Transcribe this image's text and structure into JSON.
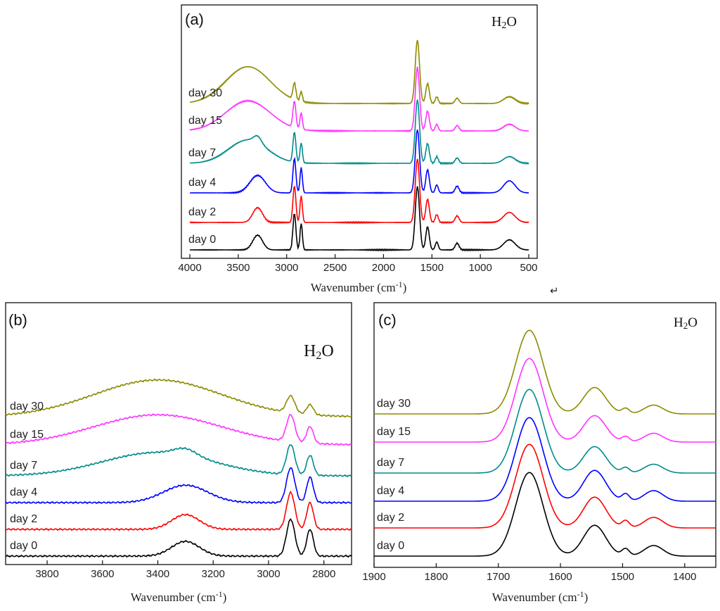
{
  "chart_data": [
    {
      "type": "line",
      "panel_label": "(a)",
      "solvent_label": "H2O",
      "xlabel": "Wavenumber (cm-1)",
      "xlim": [
        4000,
        500
      ],
      "xticks": [
        4000,
        3500,
        3000,
        2500,
        2000,
        1500,
        1000,
        500
      ],
      "series": [
        {
          "name": "day 0",
          "color": "#000000",
          "peaks": [
            [
              3300,
              22,
              50
            ],
            [
              2920,
              55,
              15
            ],
            [
              2850,
              40,
              12
            ],
            [
              1650,
              95,
              22
            ],
            [
              1545,
              35,
              18
            ],
            [
              1450,
              12,
              15
            ],
            [
              1240,
              10,
              20
            ],
            [
              700,
              15,
              60
            ]
          ]
        },
        {
          "name": "day 2",
          "color": "#ff0000",
          "peaks": [
            [
              3300,
              22,
              50
            ],
            [
              2920,
              55,
              15
            ],
            [
              2850,
              40,
              12
            ],
            [
              1650,
              95,
              22
            ],
            [
              1545,
              35,
              18
            ],
            [
              1450,
              12,
              15
            ],
            [
              1240,
              10,
              20
            ],
            [
              700,
              15,
              60
            ]
          ]
        },
        {
          "name": "day 4",
          "color": "#0000ff",
          "peaks": [
            [
              3300,
              26,
              80
            ],
            [
              2920,
              52,
              15
            ],
            [
              2850,
              38,
              12
            ],
            [
              1650,
              95,
              22
            ],
            [
              1545,
              35,
              18
            ],
            [
              1450,
              12,
              15
            ],
            [
              1240,
              10,
              20
            ],
            [
              700,
              18,
              60
            ]
          ]
        },
        {
          "name": "day 7",
          "color": "#008b8b",
          "peaks": [
            [
              3400,
              35,
              200
            ],
            [
              3300,
              10,
              40
            ],
            [
              2920,
              45,
              15
            ],
            [
              2850,
              30,
              12
            ],
            [
              1650,
              95,
              22
            ],
            [
              1545,
              30,
              18
            ],
            [
              1450,
              10,
              15
            ],
            [
              1240,
              8,
              20
            ],
            [
              700,
              10,
              60
            ]
          ]
        },
        {
          "name": "day 15",
          "color": "#ff33ff",
          "peaks": [
            [
              3400,
              45,
              230
            ],
            [
              2920,
              40,
              15
            ],
            [
              2850,
              25,
              12
            ],
            [
              1650,
              95,
              22
            ],
            [
              1545,
              30,
              18
            ],
            [
              1450,
              10,
              15
            ],
            [
              1240,
              8,
              20
            ],
            [
              700,
              10,
              60
            ]
          ]
        },
        {
          "name": "day 30",
          "color": "#8b8b00",
          "peaks": [
            [
              3400,
              55,
              230
            ],
            [
              2920,
              25,
              15
            ],
            [
              2850,
              15,
              12
            ],
            [
              1650,
              95,
              22
            ],
            [
              1545,
              30,
              18
            ],
            [
              1450,
              10,
              15
            ],
            [
              1240,
              8,
              20
            ],
            [
              700,
              10,
              60
            ]
          ]
        }
      ]
    },
    {
      "type": "line",
      "panel_label": "(b)",
      "solvent_label": "H2O",
      "xlabel": "Wavenumber (cm-1)",
      "xlim": [
        3950,
        2700
      ],
      "xticks": [
        3800,
        3600,
        3400,
        3200,
        3000,
        2800
      ],
      "series": [
        {
          "name": "day 0",
          "color": "#000000",
          "peaks": [
            [
              3300,
              22,
              50
            ],
            [
              2920,
              55,
              15
            ],
            [
              2850,
              40,
              12
            ]
          ]
        },
        {
          "name": "day 2",
          "color": "#ff0000",
          "peaks": [
            [
              3300,
              22,
              50
            ],
            [
              2920,
              55,
              15
            ],
            [
              2850,
              40,
              12
            ]
          ]
        },
        {
          "name": "day 4",
          "color": "#0000ff",
          "peaks": [
            [
              3300,
              26,
              80
            ],
            [
              2920,
              52,
              15
            ],
            [
              2850,
              38,
              12
            ]
          ]
        },
        {
          "name": "day 7",
          "color": "#008b8b",
          "peaks": [
            [
              3400,
              35,
              200
            ],
            [
              3300,
              10,
              40
            ],
            [
              2920,
              45,
              15
            ],
            [
              2850,
              30,
              12
            ]
          ]
        },
        {
          "name": "day 15",
          "color": "#ff33ff",
          "peaks": [
            [
              3400,
              45,
              230
            ],
            [
              2920,
              40,
              15
            ],
            [
              2850,
              25,
              12
            ]
          ]
        },
        {
          "name": "day 30",
          "color": "#8b8b00",
          "peaks": [
            [
              3400,
              55,
              230
            ],
            [
              2920,
              25,
              15
            ],
            [
              2850,
              15,
              12
            ]
          ]
        }
      ]
    },
    {
      "type": "line",
      "panel_label": "(c)",
      "solvent_label": "H2O",
      "xlabel": "Wavenumber (cm-1)",
      "xlim": [
        1900,
        1350
      ],
      "xticks": [
        1900,
        1800,
        1700,
        1600,
        1500,
        1400
      ],
      "series": [
        {
          "name": "day 0",
          "color": "#000000",
          "peaks": [
            [
              1650,
              95,
              22
            ],
            [
              1545,
              35,
              18
            ],
            [
              1495,
              8,
              6
            ],
            [
              1450,
              12,
              15
            ]
          ]
        },
        {
          "name": "day 2",
          "color": "#ff0000",
          "peaks": [
            [
              1650,
              95,
              22
            ],
            [
              1545,
              35,
              18
            ],
            [
              1495,
              8,
              6
            ],
            [
              1450,
              12,
              15
            ]
          ]
        },
        {
          "name": "day 4",
          "color": "#0000ff",
          "peaks": [
            [
              1650,
              95,
              22
            ],
            [
              1545,
              35,
              18
            ],
            [
              1495,
              8,
              6
            ],
            [
              1450,
              12,
              15
            ]
          ]
        },
        {
          "name": "day 7",
          "color": "#008b8b",
          "peaks": [
            [
              1650,
              95,
              22
            ],
            [
              1545,
              30,
              18
            ],
            [
              1495,
              6,
              6
            ],
            [
              1450,
              10,
              15
            ]
          ]
        },
        {
          "name": "day 15",
          "color": "#ff33ff",
          "peaks": [
            [
              1650,
              95,
              22
            ],
            [
              1545,
              30,
              18
            ],
            [
              1495,
              6,
              6
            ],
            [
              1450,
              10,
              15
            ]
          ]
        },
        {
          "name": "day 30",
          "color": "#8b8b00",
          "peaks": [
            [
              1650,
              95,
              22
            ],
            [
              1545,
              30,
              18
            ],
            [
              1495,
              6,
              6
            ],
            [
              1450,
              10,
              15
            ]
          ]
        }
      ]
    }
  ],
  "footer_mark": "↵"
}
